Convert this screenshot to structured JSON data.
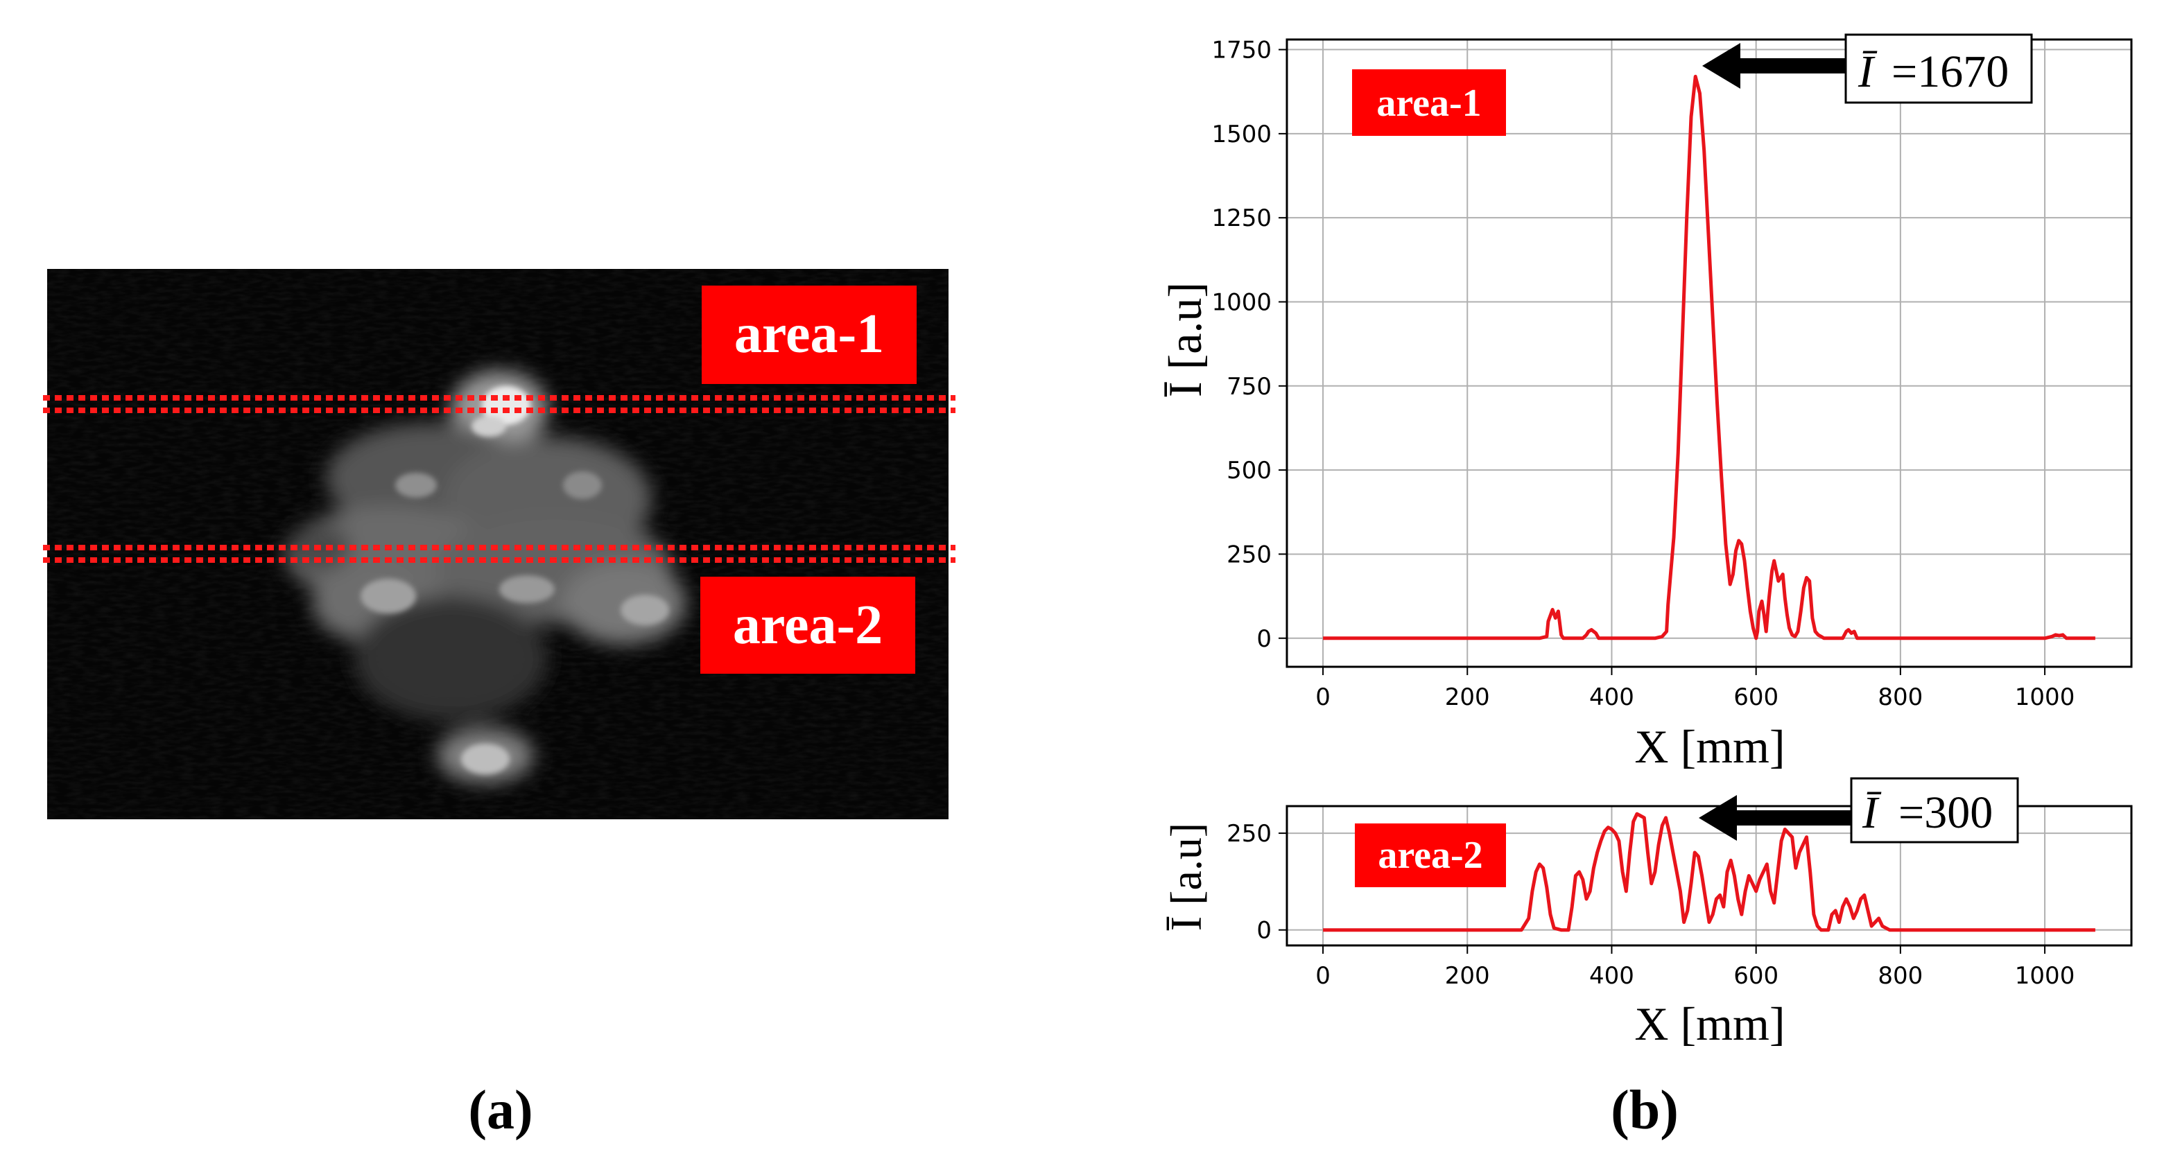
{
  "panel_a": {
    "label": "(a)",
    "area1_label": "area-1",
    "area2_label": "area-2"
  },
  "panel_b": {
    "label": "(b)"
  },
  "colors": {
    "accent_red": "#ff0000",
    "trace_red": "#e8141b",
    "grid": "#b0b0b0",
    "image_bg": "#050505"
  },
  "chart_data": [
    {
      "type": "line",
      "region": "area-1",
      "area_label": "area-1",
      "annotation": "=1670",
      "annotation_symbol": "Ī",
      "xlabel": "X [mm]",
      "ylabel": "Ī [a.u]",
      "xlim": [
        -50,
        1120
      ],
      "ylim": [
        -85,
        1780
      ],
      "xticks": [
        0,
        200,
        400,
        600,
        800,
        1000
      ],
      "yticks": [
        0,
        250,
        500,
        750,
        1000,
        1250,
        1500,
        1750
      ],
      "grid": true,
      "x": [
        0,
        300,
        310,
        312,
        318,
        322,
        326,
        330,
        333,
        360,
        365,
        368,
        372,
        378,
        382,
        460,
        470,
        476,
        478,
        482,
        486,
        492,
        498,
        504,
        510,
        516,
        522,
        528,
        534,
        540,
        546,
        552,
        558,
        564,
        568,
        572,
        576,
        580,
        584,
        588,
        592,
        596,
        600,
        602,
        604,
        608,
        611,
        614,
        618,
        622,
        625,
        628,
        631,
        634,
        637,
        640,
        643,
        646,
        650,
        654,
        658,
        662,
        666,
        670,
        674,
        678,
        682,
        686,
        690,
        694,
        700,
        720,
        725,
        728,
        732,
        736,
        740,
        1000,
        1010,
        1015,
        1020,
        1025,
        1030,
        1070
      ],
      "values": [
        0,
        0,
        5,
        50,
        85,
        60,
        80,
        10,
        0,
        0,
        10,
        20,
        25,
        15,
        0,
        0,
        5,
        20,
        100,
        200,
        300,
        550,
        900,
        1250,
        1550,
        1670,
        1620,
        1450,
        1200,
        950,
        700,
        480,
        280,
        160,
        190,
        260,
        290,
        280,
        230,
        150,
        80,
        30,
        0,
        20,
        80,
        110,
        70,
        20,
        120,
        200,
        230,
        200,
        170,
        180,
        190,
        120,
        70,
        30,
        10,
        5,
        20,
        80,
        150,
        180,
        170,
        60,
        20,
        10,
        5,
        0,
        0,
        0,
        20,
        25,
        15,
        20,
        0,
        0,
        5,
        10,
        8,
        10,
        0,
        0
      ]
    },
    {
      "type": "line",
      "region": "area-2",
      "area_label": "area-2",
      "annotation": "=300",
      "annotation_symbol": "Ī",
      "xlabel": "X [mm]",
      "ylabel": "Ī [a.u]",
      "xlim": [
        -50,
        1120
      ],
      "ylim": [
        -40,
        320
      ],
      "xticks": [
        0,
        200,
        400,
        600,
        800,
        1000
      ],
      "yticks": [
        0,
        250
      ],
      "grid": true,
      "x": [
        0,
        250,
        275,
        285,
        290,
        295,
        300,
        305,
        310,
        315,
        320,
        330,
        340,
        345,
        350,
        355,
        360,
        365,
        370,
        375,
        380,
        385,
        390,
        395,
        400,
        405,
        410,
        415,
        420,
        425,
        430,
        435,
        440,
        445,
        450,
        455,
        460,
        465,
        470,
        475,
        480,
        485,
        490,
        495,
        500,
        505,
        510,
        515,
        520,
        525,
        530,
        535,
        540,
        545,
        550,
        555,
        560,
        565,
        570,
        575,
        580,
        585,
        590,
        595,
        600,
        605,
        610,
        615,
        620,
        625,
        630,
        635,
        640,
        645,
        650,
        655,
        660,
        665,
        670,
        675,
        680,
        685,
        690,
        700,
        705,
        710,
        715,
        720,
        725,
        730,
        735,
        740,
        745,
        750,
        755,
        760,
        765,
        770,
        775,
        780,
        785,
        790,
        1070
      ],
      "values": [
        0,
        0,
        0,
        30,
        100,
        150,
        170,
        160,
        110,
        40,
        5,
        0,
        0,
        60,
        140,
        150,
        130,
        80,
        100,
        160,
        200,
        230,
        255,
        265,
        260,
        250,
        230,
        150,
        100,
        200,
        280,
        300,
        295,
        290,
        200,
        120,
        150,
        220,
        270,
        290,
        250,
        200,
        150,
        100,
        20,
        50,
        120,
        200,
        190,
        140,
        80,
        20,
        40,
        80,
        90,
        60,
        150,
        180,
        140,
        80,
        40,
        100,
        140,
        120,
        100,
        130,
        150,
        170,
        100,
        70,
        150,
        230,
        260,
        250,
        240,
        160,
        200,
        220,
        240,
        150,
        40,
        10,
        0,
        0,
        40,
        50,
        20,
        60,
        80,
        60,
        30,
        50,
        80,
        90,
        50,
        10,
        20,
        30,
        10,
        5,
        0,
        0,
        0
      ]
    }
  ]
}
